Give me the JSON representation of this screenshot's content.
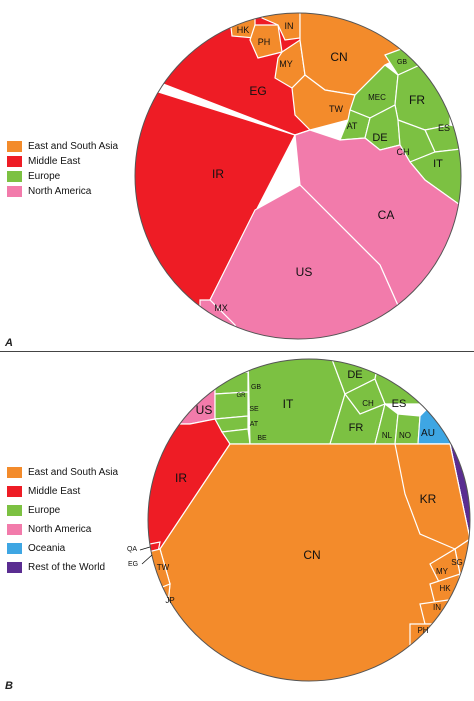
{
  "colors": {
    "east_south_asia": "#f38b2b",
    "middle_east": "#ee1c25",
    "europe": "#7cc142",
    "north_america": "#f27bab",
    "oceania": "#3ea6e3",
    "rest_of_world": "#5a2d91"
  },
  "panel_a": {
    "letter": "A",
    "legend": [
      {
        "label": "East and South Asia",
        "color": "#f38b2b"
      },
      {
        "label": "Middle East",
        "color": "#ee1c25"
      },
      {
        "label": "Europe",
        "color": "#7cc142"
      },
      {
        "label": "North America",
        "color": "#f27bab"
      }
    ],
    "cells": {
      "hk": "HK",
      "ph": "PH",
      "in": "IN",
      "my": "MY",
      "cn": "CN",
      "tw": "TW",
      "eg": "EG",
      "ir": "IR",
      "gb": "GB",
      "mec": "MEC",
      "fr": "FR",
      "at": "AT",
      "de": "DE",
      "es": "ES",
      "ch": "CH",
      "it": "IT",
      "ca": "CA",
      "us": "US",
      "mx": "MX"
    }
  },
  "panel_b": {
    "letter": "B",
    "legend": [
      {
        "label": "East and South Asia",
        "color": "#f38b2b"
      },
      {
        "label": "Middle East",
        "color": "#ee1c25"
      },
      {
        "label": "Europe",
        "color": "#7cc142"
      },
      {
        "label": "North America",
        "color": "#f27bab"
      },
      {
        "label": "Oceania",
        "color": "#3ea6e3"
      },
      {
        "label": "Rest of the World",
        "color": "#5a2d91"
      }
    ],
    "cells": {
      "gr": "GR",
      "gb": "GB",
      "us": "US",
      "se": "SE",
      "it": "IT",
      "de": "DE",
      "ch": "CH",
      "es": "ES",
      "at": "AT",
      "be": "BE",
      "fr": "FR",
      "nl": "NL",
      "no": "NO",
      "au": "AU",
      "ir": "IR",
      "qa": "QA",
      "eg": "EG",
      "tw": "TW",
      "jp": "JP",
      "cn": "CN",
      "kr": "KR",
      "sg": "SG",
      "my": "MY",
      "hk": "HK",
      "in": "IN",
      "ph": "PH"
    }
  }
}
